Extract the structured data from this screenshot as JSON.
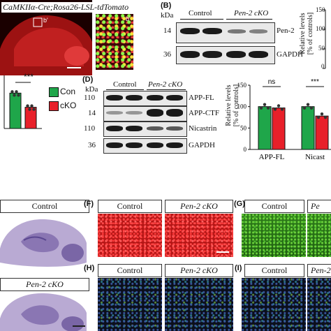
{
  "panel_a": {
    "title": "CaMKIIα-Cre;Rosa26-LSL-tdTomato",
    "inset_label": "b'",
    "inset_marker": "b'"
  },
  "panel_b": {
    "letter": "(B)",
    "kda": "kDa",
    "groups": [
      "Control",
      "Pen-2 cKO"
    ],
    "markers": [
      "14",
      "36"
    ],
    "proteins": [
      "Pen-2",
      "GAPDH"
    ],
    "ylabel": "Relative levels\n[% of controls]",
    "yticks": [
      "150",
      "100",
      "50",
      "0"
    ]
  },
  "panel_c": {
    "significance": "***",
    "legend": [
      {
        "name": "Con",
        "color": "#1fa64a"
      },
      {
        "name": "cKO",
        "color": "#e8202a"
      }
    ]
  },
  "panel_d": {
    "letter": "(D)",
    "kda": "kDa",
    "groups": [
      "Control",
      "Pen-2 cKO"
    ],
    "markers": [
      "110",
      "14",
      "110",
      "36"
    ],
    "proteins": [
      "APP-FL",
      "APP-CTF",
      "Nicastrin",
      "GAPDH"
    ],
    "ylabel": "Relative levels\n[% of controls]",
    "yticks": [
      "150",
      "100",
      "50",
      "0"
    ],
    "significance": [
      "ns",
      "***"
    ],
    "xcats": [
      "APP-FL",
      "Nicast"
    ]
  },
  "chart_data": [
    {
      "type": "bar",
      "categories": [
        "Con",
        "cKO"
      ],
      "values": [
        100,
        60
      ],
      "ylim": [
        0,
        150
      ]
    },
    {
      "type": "bar",
      "categories": [
        "APP-FL",
        "Nicastrin"
      ],
      "series": [
        {
          "name": "Con",
          "values": [
            100,
            100
          ]
        },
        {
          "name": "cKO",
          "values": [
            97,
            78
          ]
        }
      ],
      "ylim": [
        0,
        150
      ]
    }
  ],
  "panel_e": {
    "control_label": "Control",
    "cko_label": "Pen-2 cKO"
  },
  "panel_f": {
    "letter": "(F)",
    "labels": [
      "Control",
      "Pen-2 cKO"
    ]
  },
  "panel_g": {
    "letter": "(G)",
    "labels": [
      "Control",
      "Pe"
    ]
  },
  "panel_h": {
    "letter": "(H)",
    "labels": [
      "Control",
      "Pen-2 cKO"
    ]
  },
  "panel_i": {
    "letter": "(I)",
    "labels": [
      "Control",
      "Pen-2"
    ]
  },
  "colors": {
    "control": "#1fa64a",
    "cko": "#e8202a",
    "tdtomato": "#c01818"
  }
}
